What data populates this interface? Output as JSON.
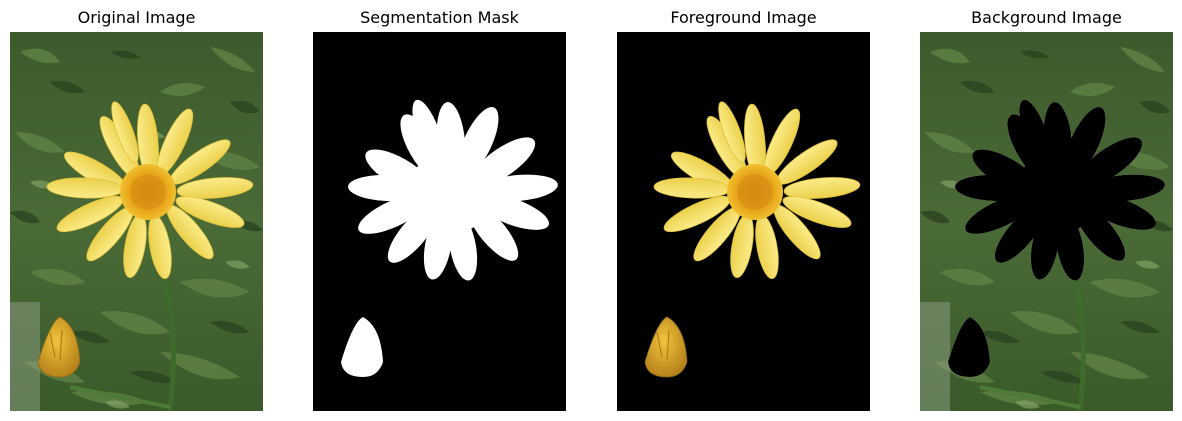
{
  "panels": [
    {
      "title": "Original Image",
      "kind": "original"
    },
    {
      "title": "Segmentation Mask",
      "kind": "mask"
    },
    {
      "title": "Foreground Image",
      "kind": "foreground"
    },
    {
      "title": "Background Image",
      "kind": "background"
    }
  ],
  "colors": {
    "foliage_dark": "#2f4a22",
    "foliage_mid": "#4c6b35",
    "foliage_light": "#7a9a5a",
    "petal": "#f4e064",
    "petal_edge": "#e6c53a",
    "center": "#e7a417",
    "center_dot": "#c9800f",
    "bud": "#d9a92a",
    "mask_fg": "#ffffff",
    "mask_bg": "#000000"
  }
}
